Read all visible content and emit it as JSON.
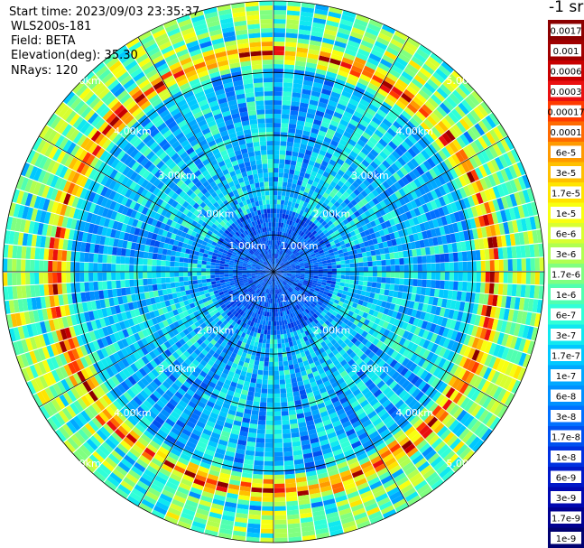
{
  "header": {
    "start_time": "Start time: 2023/09/03 23:35:37",
    "instrument": "WLS200s-181",
    "field": "Field: BETA",
    "elevation": "Elevation(deg): 35.30",
    "nrays": "NRays: 120"
  },
  "chart_data": {
    "type": "heatmap",
    "projection": "polar (PPI)",
    "rays": 120,
    "max_range_km": 5.0,
    "range_ring_labels": [
      "1.00km",
      "2.00km",
      "3.00km",
      "4.00km",
      "5.00km"
    ],
    "range_rings_km": [
      1,
      2,
      3,
      4,
      5
    ],
    "spoke_angles_deg": [
      0,
      30,
      60,
      90,
      120,
      150,
      180,
      210,
      240,
      270,
      300,
      330
    ],
    "colorbar": {
      "unit": "-1 sr",
      "labels": [
        "0.0017",
        "0.001",
        "0.0006",
        "0.0003",
        "0.00017",
        "0.0001",
        "6e-5",
        "3e-5",
        "1.7e-5",
        "1e-5",
        "6e-6",
        "3e-6",
        "1.7e-6",
        "1e-6",
        "6e-7",
        "3e-7",
        "1.7e-7",
        "1e-7",
        "6e-8",
        "3e-8",
        "1.7e-8",
        "1e-8",
        "6e-9",
        "3e-9",
        "1.7e-9",
        "1e-9"
      ],
      "colors": [
        "#8b0000",
        "#a00000",
        "#c80000",
        "#ea1010",
        "#ff3a00",
        "#ff6a00",
        "#ff9a00",
        "#ffc000",
        "#ffe400",
        "#f8ff10",
        "#d8ff30",
        "#b0ff50",
        "#80ff80",
        "#50ffb0",
        "#30ffd8",
        "#10e8f0",
        "#00c8ff",
        "#00a8ff",
        "#0090ff",
        "#0070ff",
        "#0050f0",
        "#0030e0",
        "#0018c8",
        "#0008b0",
        "#000090",
        "#000070"
      ],
      "scale": "log"
    },
    "description_values": {
      "dominant_near_range": "1e-8 to 6e-8",
      "ring_peak_range_km": [
        3.9,
        4.2
      ],
      "ring_peak_value": "1.7e-5 to 1e-4"
    }
  }
}
